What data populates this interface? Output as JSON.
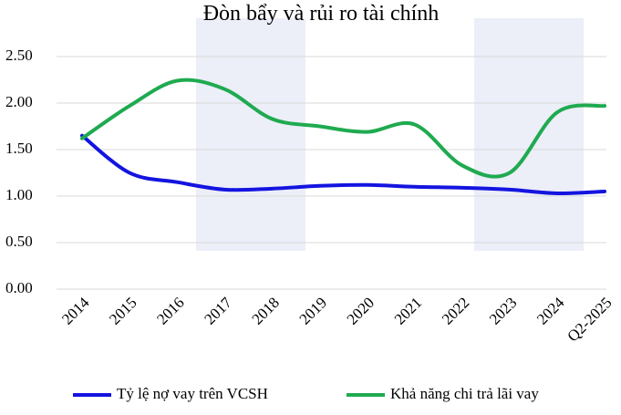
{
  "chart_data": {
    "type": "line",
    "title": "Đòn bẩy và rủi ro tài chính",
    "categories": [
      "2014",
      "2015",
      "2016",
      "2017",
      "2018",
      "2019",
      "2020",
      "2021",
      "2022",
      "2023",
      "2024",
      "Q2-2025"
    ],
    "series": [
      {
        "name": "Tỷ lệ nợ vay trên VCSH",
        "color": "#1414e0",
        "values": [
          1.65,
          1.25,
          1.15,
          1.07,
          1.08,
          1.11,
          1.12,
          1.1,
          1.09,
          1.07,
          1.03,
          1.05
        ]
      },
      {
        "name": "Khả năng chi trả lãi vay",
        "color": "#1faa50",
        "values": [
          1.62,
          1.97,
          2.24,
          2.15,
          1.83,
          1.75,
          1.69,
          1.77,
          1.33,
          1.25,
          1.9,
          1.97
        ]
      }
    ],
    "ylim": [
      0,
      2.5
    ],
    "yticks": [
      {
        "value": 0,
        "label": "0.00"
      },
      {
        "value": 0.5,
        "label": "0.50"
      },
      {
        "value": 1,
        "label": "1.00"
      },
      {
        "value": 1.5,
        "label": "1.50"
      },
      {
        "value": 2,
        "label": "2.00"
      },
      {
        "value": 2.5,
        "label": "2.50"
      }
    ],
    "grid": true,
    "legend": "bottom"
  }
}
